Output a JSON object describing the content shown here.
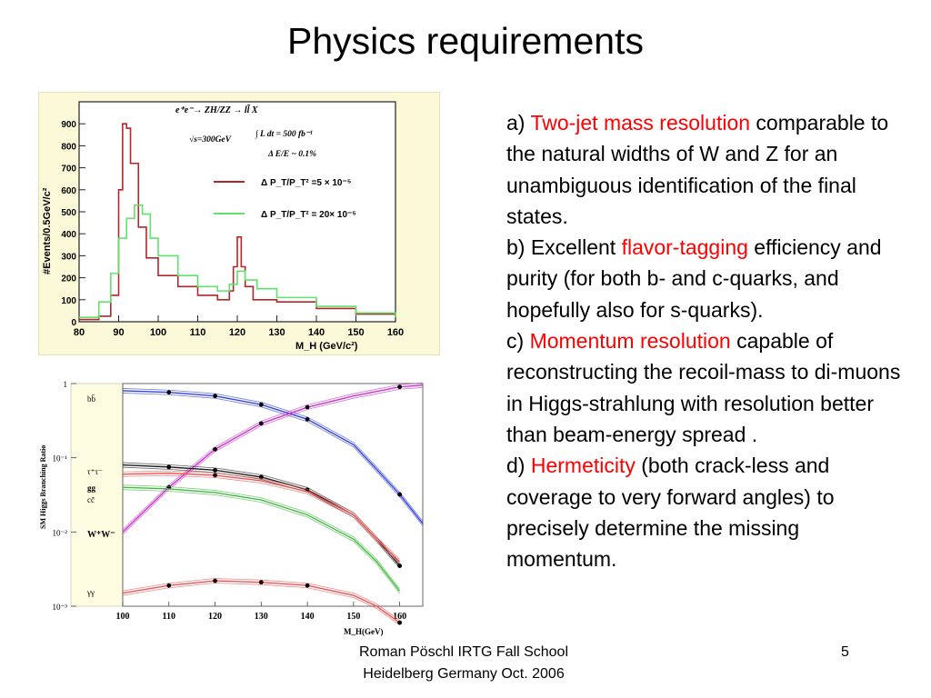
{
  "title": "Physics requirements",
  "figure_top": {
    "process": "e⁺e⁻→ ZH/ZZ → ll̄ X",
    "lumi": "∫ L dt = 500 fb⁻¹",
    "sqrt_s": "√s=300GeV",
    "beam_spread": "Δ E/E ~ 0.1%",
    "ylabel": "#Events/0.5GeV/c²",
    "xlabel": "M_H (GeV/c²)",
    "legend_red": "Δ P_T/P_T² =5 × 10⁻⁵",
    "legend_green": "Δ P_T/P_T² = 20× 10⁻⁵",
    "colors": {
      "red": "#b3262a",
      "green": "#5fe36a",
      "bg": "#fcf9d8"
    }
  },
  "figure_bottom": {
    "ylabel": "SM Higgs Branching Ratio",
    "xlabel": "M_H(GeV)",
    "channel_labels": [
      "bb̄",
      "τ⁺τ⁻",
      "gg",
      "cc̄",
      "W⁺W⁻",
      "γγ"
    ],
    "colors": {
      "bb": "#3344dd",
      "ww": "#cc33cc",
      "tau": "#222222",
      "gg": "#ee5555",
      "cc": "#44bb44",
      "band": "#fdfbe0"
    }
  },
  "chart_data": [
    {
      "type": "line",
      "xlabel": "M_H (GeV/c²)",
      "ylabel": "#Events/0.5GeV/c²",
      "xlim": [
        80,
        160
      ],
      "ylim": [
        0,
        1000
      ],
      "x_ticks": [
        "80",
        "90",
        "100",
        "110",
        "120",
        "130",
        "140",
        "150",
        "160"
      ],
      "y_ticks": [
        "0",
        "100",
        "200",
        "300",
        "400",
        "500",
        "600",
        "700",
        "800",
        "900"
      ],
      "series": [
        {
          "name": "Δ P_T/P_T² =5 × 10⁻⁵",
          "x": [
            80,
            85,
            88,
            90,
            91,
            92,
            93,
            95,
            97,
            100,
            105,
            110,
            115,
            118,
            119,
            120,
            121,
            122,
            124,
            130,
            140,
            150,
            160
          ],
          "y": [
            10,
            25,
            120,
            600,
            900,
            880,
            720,
            430,
            290,
            210,
            160,
            120,
            100,
            140,
            250,
            385,
            250,
            160,
            100,
            90,
            60,
            35,
            15
          ]
        },
        {
          "name": "Δ P_T/P_T² = 20× 10⁻⁵",
          "x": [
            80,
            85,
            88,
            90,
            92,
            94,
            96,
            98,
            100,
            105,
            110,
            115,
            118,
            120,
            122,
            125,
            130,
            140,
            150,
            160
          ],
          "y": [
            20,
            90,
            220,
            380,
            470,
            530,
            490,
            380,
            300,
            210,
            160,
            140,
            170,
            230,
            190,
            150,
            110,
            70,
            40,
            18
          ]
        }
      ]
    },
    {
      "type": "line",
      "xlabel": "M_H(GeV)",
      "ylabel": "SM Higgs Branching Ratio",
      "xlim": [
        100,
        165
      ],
      "ylog": true,
      "ylim": [
        0.001,
        1
      ],
      "x_ticks": [
        "100",
        "110",
        "120",
        "130",
        "140",
        "150",
        "160"
      ],
      "y_ticks": [
        "10⁻³",
        "10⁻²",
        "10⁻¹",
        "1"
      ],
      "series": [
        {
          "name": "bb̄",
          "x": [
            100,
            110,
            120,
            130,
            140,
            150,
            155,
            160,
            165
          ],
          "y": [
            0.8,
            0.76,
            0.68,
            0.52,
            0.33,
            0.15,
            0.07,
            0.032,
            0.013
          ]
        },
        {
          "name": "W⁺W⁻",
          "x": [
            100,
            110,
            120,
            130,
            140,
            150,
            160,
            165
          ],
          "y": [
            0.01,
            0.04,
            0.13,
            0.29,
            0.48,
            0.68,
            0.9,
            0.95
          ]
        },
        {
          "name": "τ⁺τ⁻",
          "x": [
            100,
            110,
            120,
            130,
            140,
            150,
            155,
            160
          ],
          "y": [
            0.08,
            0.075,
            0.068,
            0.055,
            0.037,
            0.017,
            0.008,
            0.0035
          ]
        },
        {
          "name": "gg",
          "x": [
            100,
            110,
            120,
            130,
            140,
            150,
            155,
            160
          ],
          "y": [
            0.06,
            0.062,
            0.058,
            0.049,
            0.035,
            0.017,
            0.008,
            0.004
          ]
        },
        {
          "name": "cc̄",
          "x": [
            100,
            110,
            120,
            130,
            140,
            150,
            155,
            160
          ],
          "y": [
            0.04,
            0.038,
            0.034,
            0.027,
            0.017,
            0.008,
            0.004,
            0.0016
          ]
        },
        {
          "name": "γγ",
          "x": [
            100,
            110,
            120,
            130,
            140,
            150,
            155,
            160
          ],
          "y": [
            0.0015,
            0.0019,
            0.0022,
            0.0021,
            0.0019,
            0.0014,
            0.001,
            0.0006
          ]
        }
      ]
    }
  ],
  "body": {
    "a_prefix": "a) ",
    "a_hl": "Two-jet mass resolution",
    "a_rest": " comparable to the natural widths of W and Z for an unambiguous identification of the final states.",
    "b_prefix": "b) Excellent ",
    "b_hl": "flavor-tagging",
    "b_rest": " efficiency and purity (for both b- and c-quarks, and hopefully also for s-quarks).",
    "c_prefix": "c) ",
    "c_hl": "Momentum resolution",
    "c_rest": " capable of reconstructing the recoil-mass to di-muons in Higgs-strahlung with resolution better than beam-energy spread .",
    "d_prefix": "d) ",
    "d_hl": "Hermeticity",
    "d_rest": " (both crack-less and coverage to very forward angles) to precisely determine the missing momentum."
  },
  "footer": {
    "line1": "Roman Pöschl IRTG Fall School",
    "line2": "Heidelberg Germany Oct. 2006",
    "page": "5"
  }
}
